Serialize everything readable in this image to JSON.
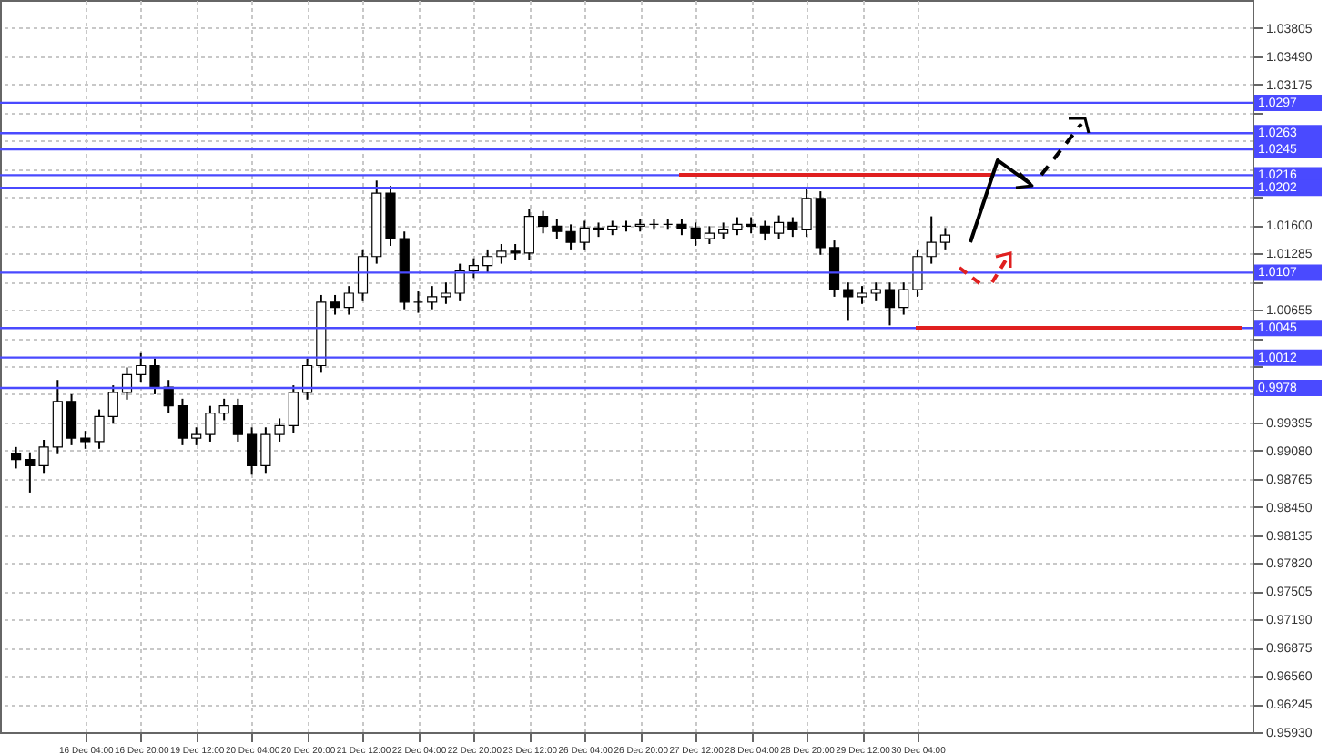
{
  "chart_data": {
    "type": "candlestick",
    "color": "#000000",
    "categories": [
      null,
      null,
      null,
      null,
      null,
      "16 Dec 04:00",
      null,
      null,
      null,
      "16 Dec 20:00",
      null,
      null,
      null,
      "19 Dec 12:00",
      null,
      null,
      null,
      "20 Dec 04:00",
      null,
      null,
      null,
      "20 Dec 20:00",
      null,
      null,
      null,
      "21 Dec 12:00",
      null,
      null,
      null,
      "22 Dec 04:00",
      null,
      null,
      null,
      "22 Dec 20:00",
      null,
      null,
      null,
      "23 Dec 12:00",
      null,
      null,
      null,
      "26 Dec 04:00",
      null,
      null,
      null,
      "26 Dec 20:00",
      null,
      null,
      null,
      "27 Dec 12:00",
      null,
      null,
      null,
      "28 Dec 04:00",
      null,
      null,
      null,
      "28 Dec 20:00",
      null,
      null,
      null,
      "29 Dec 12:00",
      null,
      null,
      null,
      "30 Dec 04:00",
      null,
      null,
      null,
      null,
      null,
      null,
      null,
      null,
      null,
      null,
      null,
      null,
      null,
      null,
      null,
      null,
      null,
      null,
      null,
      null,
      null,
      null,
      null
    ],
    "ohlc": [
      [
        0.9905,
        0.9912,
        0.9888,
        0.9898
      ],
      [
        0.9898,
        0.9906,
        0.9861,
        0.9891
      ],
      [
        0.9891,
        0.992,
        0.9883,
        0.9912
      ],
      [
        0.9912,
        0.9987,
        0.9904,
        0.9963
      ],
      [
        0.9963,
        0.9971,
        0.9914,
        0.9922
      ],
      [
        0.9922,
        0.993,
        0.991,
        0.9918
      ],
      [
        0.9918,
        0.9954,
        0.991,
        0.9946
      ],
      [
        0.9946,
        0.9981,
        0.9938,
        0.9973
      ],
      [
        0.9973,
        1.0001,
        0.9965,
        0.9993
      ],
      [
        0.9993,
        1.0017,
        0.9985,
        1.0003
      ],
      [
        1.0003,
        1.0011,
        0.9971,
        0.9979
      ],
      [
        0.9979,
        0.9987,
        0.995,
        0.9958
      ],
      [
        0.9958,
        0.9966,
        0.9914,
        0.9922
      ],
      [
        0.9922,
        0.9934,
        0.9914,
        0.9926
      ],
      [
        0.9926,
        0.9958,
        0.9918,
        0.995
      ],
      [
        0.995,
        0.9966,
        0.9942,
        0.9958
      ],
      [
        0.9958,
        0.9966,
        0.9918,
        0.9926
      ],
      [
        0.9926,
        0.9934,
        0.9881,
        0.9891
      ],
      [
        0.9891,
        0.9934,
        0.9883,
        0.9926
      ],
      [
        0.9926,
        0.9944,
        0.9918,
        0.9936
      ],
      [
        0.9936,
        0.9981,
        0.9928,
        0.9973
      ],
      [
        0.9973,
        1.0011,
        0.9965,
        1.0003
      ],
      [
        1.0003,
        1.0082,
        0.9995,
        1.0074
      ],
      [
        1.0074,
        1.0082,
        1.006,
        1.0068
      ],
      [
        1.0068,
        1.0092,
        1.006,
        1.0084
      ],
      [
        1.0084,
        1.0133,
        1.0076,
        1.0125
      ],
      [
        1.0125,
        1.021,
        1.0117,
        1.0196
      ],
      [
        1.0196,
        1.0204,
        1.0137,
        1.0145
      ],
      [
        1.0145,
        1.0153,
        1.0066,
        1.0074
      ],
      [
        1.0074,
        1.0086,
        1.0062,
        1.0074
      ],
      [
        1.0074,
        1.0092,
        1.0066,
        1.008
      ],
      [
        1.008,
        1.0096,
        1.0072,
        1.0084
      ],
      [
        1.0084,
        1.0117,
        1.0076,
        1.0109
      ],
      [
        1.0109,
        1.0123,
        1.0101,
        1.0115
      ],
      [
        1.0115,
        1.0133,
        1.0107,
        1.0125
      ],
      [
        1.0125,
        1.0139,
        1.0117,
        1.0131
      ],
      [
        1.0131,
        1.0139,
        1.0121,
        1.0129
      ],
      [
        1.0129,
        1.0178,
        1.0121,
        1.017
      ],
      [
        1.017,
        1.0176,
        1.0151,
        1.0159
      ],
      [
        1.0159,
        1.0167,
        1.0145,
        1.0153
      ],
      [
        1.0153,
        1.0161,
        1.0133,
        1.0141
      ],
      [
        1.0141,
        1.0165,
        1.0133,
        1.0157
      ],
      [
        1.0157,
        1.0163,
        1.0147,
        1.0155
      ],
      [
        1.0155,
        1.0165,
        1.0149,
        1.0159
      ],
      [
        1.0159,
        1.0165,
        1.0153,
        1.0159
      ],
      [
        1.0159,
        1.0167,
        1.0153,
        1.0161
      ],
      [
        1.0161,
        1.0167,
        1.0155,
        1.0161
      ],
      [
        1.0161,
        1.0167,
        1.0155,
        1.0161
      ],
      [
        1.0161,
        1.0167,
        1.0149,
        1.0157
      ],
      [
        1.0157,
        1.0163,
        1.0137,
        1.0145
      ],
      [
        1.0145,
        1.0159,
        1.0139,
        1.0151
      ],
      [
        1.0151,
        1.0163,
        1.0145,
        1.0155
      ],
      [
        1.0155,
        1.0169,
        1.0149,
        1.0161
      ],
      [
        1.0161,
        1.0169,
        1.0151,
        1.0159
      ],
      [
        1.0159,
        1.0165,
        1.0143,
        1.0151
      ],
      [
        1.0151,
        1.0171,
        1.0145,
        1.0163
      ],
      [
        1.0163,
        1.0169,
        1.0147,
        1.0155
      ],
      [
        1.0155,
        1.0202,
        1.0147,
        1.019
      ],
      [
        1.019,
        1.0198,
        1.0127,
        1.0135
      ],
      [
        1.0135,
        1.0143,
        1.008,
        1.0088
      ],
      [
        1.0088,
        1.0096,
        1.0054,
        1.008
      ],
      [
        1.008,
        1.0092,
        1.0072,
        1.0084
      ],
      [
        1.0084,
        1.0096,
        1.0076,
        1.0088
      ],
      [
        1.0088,
        1.0096,
        1.0048,
        1.0068
      ],
      [
        1.0068,
        1.0096,
        1.006,
        1.0088
      ],
      [
        1.0088,
        1.0133,
        1.008,
        1.0125
      ],
      [
        1.0125,
        1.017,
        1.0117,
        1.0141
      ],
      [
        1.0141,
        1.0157,
        1.0133,
        1.0149
      ],
      null,
      null,
      null,
      null,
      null,
      null,
      null,
      null,
      null,
      null,
      null,
      null,
      null,
      null,
      null,
      null,
      null,
      null,
      null,
      null,
      null
    ],
    "ylim": [
      0.9593,
      1.0412
    ],
    "yticks": [
      {
        "value": 0.9593,
        "label": "0.95930"
      },
      0.96245,
      {
        "value": 0.9656,
        "label": "0.96560"
      },
      0.96875,
      {
        "value": 0.9719,
        "label": "0.97190"
      },
      0.97505,
      {
        "value": 0.9782,
        "label": "0.97820"
      },
      0.98135,
      {
        "value": 0.9845,
        "label": "0.98450"
      },
      0.98765,
      {
        "value": 0.9908,
        "label": "0.99080"
      },
      0.99395,
      {
        "value": 0.9971,
        "label": null
      },
      {
        "value": 1.00025,
        "label": null
      },
      {
        "value": 1.0034,
        "label": null
      },
      1.00655,
      {
        "value": 1.0097,
        "label": null
      },
      1.01285,
      {
        "value": 1.016,
        "label": "1.01600"
      },
      {
        "value": 1.01915,
        "label": null
      },
      {
        "value": 1.0223,
        "label": null
      },
      {
        "value": 1.02545,
        "label": null
      },
      {
        "value": 1.0286,
        "label": null
      },
      1.03175,
      {
        "value": 1.0349,
        "label": "1.03490"
      },
      1.03805
    ],
    "grid": true,
    "ref_lines": [
      {
        "axis": "y",
        "value": 1.0297,
        "label": "1.0297",
        "color": "#4a4aff"
      },
      {
        "axis": "y",
        "value": 1.0263,
        "label": "1.0263",
        "color": "#4a4aff"
      },
      {
        "axis": "y",
        "value": 1.0245,
        "label": "1.0245",
        "color": "#4a4aff"
      },
      {
        "axis": "y",
        "value": 1.0216,
        "label": "1.0216",
        "color": "#4a4aff"
      },
      {
        "axis": "y",
        "value": 1.0202,
        "label": "1.0202",
        "color": "#4a4aff"
      },
      {
        "axis": "y",
        "value": 1.0107,
        "label": "1.0107",
        "color": "#4a4aff"
      },
      {
        "axis": "y",
        "value": 1.0045,
        "label": "1.0045",
        "color": "#4a4aff"
      },
      {
        "axis": "y",
        "value": 1.0012,
        "label": "1.0012",
        "color": "#4a4aff"
      },
      {
        "axis": "y",
        "value": 0.9978,
        "label": "0.9978",
        "color": "#4a4aff"
      }
    ]
  }
}
